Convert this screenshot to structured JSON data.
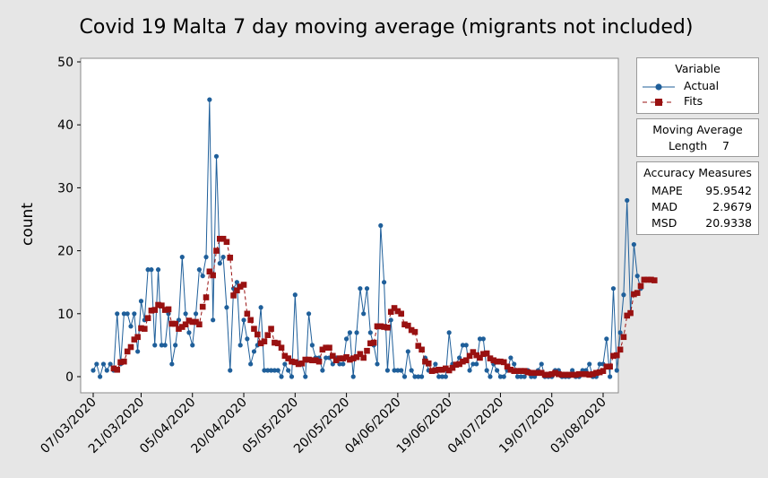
{
  "chart_data": {
    "type": "line",
    "title": "Covid 19 Malta 7 day moving average (migrants not included)",
    "ylabel": "count",
    "xlabel": "",
    "ylim": [
      0,
      50
    ],
    "yticks": [
      0,
      10,
      20,
      30,
      40,
      50
    ],
    "xtick_labels": [
      "07/03/2020",
      "21/03/2020",
      "05/04/2020",
      "20/04/2020",
      "05/05/2020",
      "20/05/2020",
      "04/06/2020",
      "19/06/2020",
      "04/07/2020",
      "19/07/2020",
      "03/08/2020"
    ],
    "xtick_days": [
      0,
      14,
      29,
      44,
      59,
      74,
      89,
      104,
      119,
      134,
      149
    ],
    "x_start": "07/03/2020",
    "colors": {
      "actual": "#1f5f9a",
      "fits": "#991111"
    },
    "series": [
      {
        "name": "Actual",
        "values": [
          1,
          2,
          0,
          2,
          1,
          2,
          1,
          10,
          2,
          10,
          10,
          8,
          10,
          4,
          12,
          9,
          17,
          17,
          5,
          17,
          5,
          5,
          10,
          2,
          5,
          9,
          19,
          10,
          7,
          5,
          10,
          17,
          16,
          19,
          44,
          9,
          35,
          18,
          19,
          11,
          1,
          14,
          15,
          5,
          9,
          6,
          2,
          4,
          5,
          11,
          1,
          1,
          1,
          1,
          1,
          0,
          2,
          1,
          0,
          13,
          2,
          2,
          0,
          10,
          5,
          3,
          3,
          1,
          3,
          3,
          2,
          3,
          2,
          2,
          6,
          7,
          0,
          7,
          14,
          10,
          14,
          7,
          5,
          2,
          24,
          15,
          1,
          9,
          1,
          1,
          1,
          0,
          4,
          1,
          0,
          0,
          0,
          3,
          1,
          1,
          2,
          0,
          0,
          0,
          7,
          2,
          2,
          3,
          5,
          5,
          1,
          2,
          2,
          6,
          6,
          1,
          0,
          2,
          1,
          0,
          0,
          1,
          3,
          2,
          0,
          0,
          0,
          1,
          0,
          0,
          1,
          2,
          0,
          0,
          0,
          1,
          1,
          0,
          0,
          0,
          1,
          0,
          0,
          1,
          1,
          2,
          0,
          0,
          2,
          2,
          6,
          0,
          14,
          1,
          7,
          13,
          28,
          10,
          21,
          16,
          14
        ]
      },
      {
        "name": "Fits",
        "start_index": 6,
        "values": [
          1.3,
          1.1,
          2.3,
          2.4,
          4.0,
          4.7,
          5.9,
          6.3,
          7.7,
          7.6,
          9.3,
          10.5,
          10.6,
          11.4,
          11.3,
          10.6,
          10.7,
          8.4,
          8.4,
          7.6,
          7.9,
          8.3,
          8.9,
          8.7,
          8.7,
          8.3,
          11.1,
          12.6,
          16.7,
          16.1,
          20.0,
          21.9,
          21.9,
          21.4,
          18.9,
          12.9,
          13.7,
          14.3,
          14.6,
          10.0,
          9.0,
          7.6,
          6.7,
          5.3,
          5.6,
          6.6,
          7.6,
          5.4,
          5.3,
          4.6,
          3.3,
          2.9,
          2.4,
          2.3,
          2.0,
          2.1,
          2.7,
          2.7,
          2.6,
          2.6,
          2.4,
          4.3,
          4.6,
          4.6,
          3.3,
          2.6,
          2.9,
          2.9,
          3.1,
          2.7,
          2.9,
          3.1,
          3.6,
          3.0,
          4.1,
          5.3,
          5.4,
          8.0,
          8.0,
          7.9,
          7.8,
          10.3,
          10.9,
          10.4,
          10.0,
          8.3,
          8.1,
          7.4,
          7.1,
          4.9,
          4.3,
          2.4,
          2.1,
          0.9,
          1.0,
          1.1,
          1.1,
          1.3,
          1.0,
          1.4,
          1.9,
          2.0,
          2.4,
          2.6,
          3.3,
          3.9,
          3.4,
          3.0,
          3.6,
          3.7,
          2.9,
          2.6,
          2.4,
          2.4,
          2.3,
          1.6,
          1.1,
          0.9,
          0.9,
          0.9,
          0.9,
          0.7,
          0.6,
          0.6,
          0.6,
          0.6,
          0.3,
          0.3,
          0.4,
          0.6,
          0.4,
          0.3,
          0.3,
          0.3,
          0.3,
          0.3,
          0.4,
          0.4,
          0.4,
          0.3,
          0.4,
          0.6,
          0.7,
          0.9,
          1.6,
          1.6,
          3.3,
          3.4,
          4.3,
          6.3,
          9.7,
          10.1,
          13.1,
          13.3,
          14.4,
          15.4,
          15.4,
          15.4,
          15.3
        ]
      }
    ],
    "legend": {
      "title": "Variable",
      "entries": [
        "Actual",
        "Fits"
      ],
      "ma_title": "Moving Average",
      "ma_length_label": "Length",
      "ma_length_value": "7",
      "accuracy_title": "Accuracy Measures",
      "accuracy": [
        {
          "label": "MAPE",
          "value": "95.9542"
        },
        {
          "label": "MAD",
          "value": "2.9679"
        },
        {
          "label": "MSD",
          "value": "20.9338"
        }
      ]
    }
  }
}
